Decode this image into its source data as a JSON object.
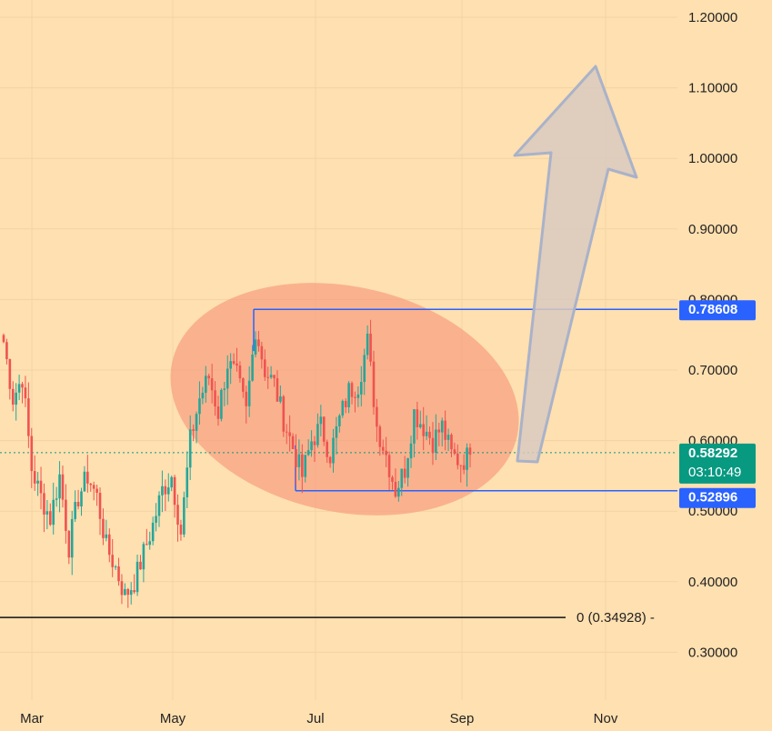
{
  "chart_data": {
    "type": "candlestick",
    "x_ticks": [
      "Mar",
      "May",
      "Jul",
      "Sep",
      "Nov"
    ],
    "y_ticks": [
      "1.20000",
      "1.10000",
      "1.00000",
      "0.90000",
      "0.80000",
      "0.70000",
      "0.60000",
      "0.50000",
      "0.40000",
      "0.30000"
    ],
    "ylim": [
      0.265,
      1.225
    ],
    "grid": true,
    "price_levels": {
      "resistance": {
        "label": "0.78608",
        "value": 0.78608
      },
      "support": {
        "label": "0.52896",
        "value": 0.52896
      },
      "current": {
        "label": "0.58292",
        "value": 0.58292,
        "countdown": "03:10:49"
      },
      "fib_zero": {
        "label": "0 (0.34928)",
        "value": 0.34928
      }
    },
    "annotations": {
      "range_ellipse": "consolidation zone",
      "projection_arrow": "upward breakout target"
    },
    "colors": {
      "up": "#26a69a",
      "down": "#ef5350",
      "resistance_line": "#2962ff",
      "support_line": "#2962ff",
      "current_badge": "#089981",
      "level_badge": "#2962ff",
      "ellipse_fill": "#f7a080",
      "arrow_fill": "#d9c9bf",
      "arrow_stroke": "#a9b2c9"
    },
    "candles_approx_close": [
      0.74,
      0.66,
      0.69,
      0.56,
      0.52,
      0.49,
      0.55,
      0.45,
      0.52,
      0.55,
      0.52,
      0.45,
      0.42,
      0.38,
      0.4,
      0.44,
      0.48,
      0.53,
      0.55,
      0.47,
      0.6,
      0.66,
      0.69,
      0.64,
      0.71,
      0.69,
      0.64,
      0.76,
      0.7,
      0.68,
      0.63,
      0.59,
      0.55,
      0.6,
      0.62,
      0.58,
      0.63,
      0.67,
      0.68,
      0.74,
      0.62,
      0.58,
      0.53,
      0.56,
      0.64,
      0.62,
      0.6,
      0.62,
      0.58,
      0.57,
      0.58
    ]
  }
}
